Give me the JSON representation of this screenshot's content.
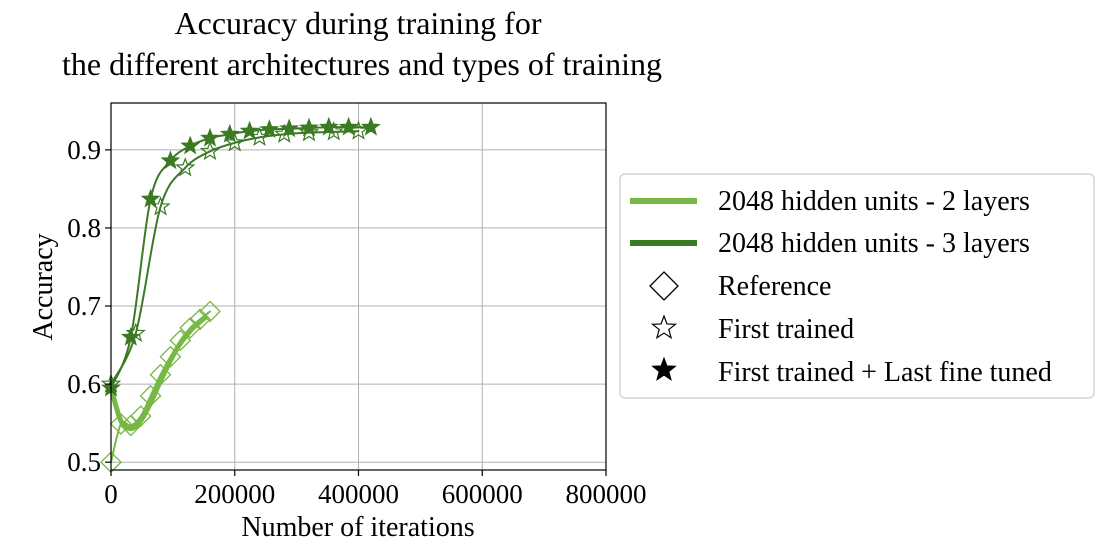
{
  "chart_data": {
    "type": "line",
    "title": [
      "Accuracy during training for",
      "the different architectures and types of training"
    ],
    "xlabel": "Number of iterations",
    "ylabel": "Accuracy",
    "xlim": [
      0,
      800000
    ],
    "ylim": [
      0.49,
      0.96
    ],
    "xticks": [
      0,
      200000,
      400000,
      600000,
      800000
    ],
    "xtick_labels": [
      "0",
      "200000",
      "400000",
      "600000",
      "800000"
    ],
    "yticks": [
      0.5,
      0.6,
      0.7,
      0.8,
      0.9
    ],
    "ytick_labels": [
      "0.5",
      "0.6",
      "0.7",
      "0.8",
      "0.9"
    ],
    "grid": true,
    "legend_placement": "right",
    "colors": {
      "arch2": "#76b843",
      "arch3": "#3b7a23",
      "marker_legend": "#000000"
    },
    "legend": {
      "lines": [
        {
          "label": "2048 hidden units - 2 layers",
          "color": "#76b843"
        },
        {
          "label": "2048 hidden units - 3 layers",
          "color": "#3b7a23"
        }
      ],
      "markers": [
        {
          "label": "Reference",
          "marker": "diamond-open"
        },
        {
          "label": "First trained",
          "marker": "star-open"
        },
        {
          "label": "First trained + Last fine tuned",
          "marker": "star-filled"
        }
      ]
    },
    "series": [
      {
        "architecture": "2048 hidden units - 2 layers",
        "training": "Reference",
        "marker": "diamond-open",
        "color": "#76b843",
        "x": [
          0,
          16000,
          32000,
          48000,
          64000,
          80000,
          96000,
          112000,
          128000,
          144000,
          160000
        ],
        "y": [
          0.5,
          0.549,
          0.547,
          0.559,
          0.585,
          0.612,
          0.635,
          0.656,
          0.672,
          0.683,
          0.693
        ]
      },
      {
        "architecture": "2048 hidden units - 2 layers",
        "training": "Reference (smoothed)",
        "marker": "none",
        "color": "#76b843",
        "x": [
          0,
          16000,
          32000,
          48000,
          64000,
          80000,
          96000,
          112000,
          128000,
          144000,
          152000
        ],
        "y": [
          0.595,
          0.553,
          0.543,
          0.553,
          0.576,
          0.604,
          0.63,
          0.652,
          0.668,
          0.68,
          0.685
        ]
      },
      {
        "architecture": "2048 hidden units - 3 layers",
        "training": "First trained",
        "marker": "star-open",
        "color": "#3b7a23",
        "x": [
          0,
          40000,
          80000,
          120000,
          160000,
          200000,
          240000,
          280000,
          320000,
          360000,
          400000
        ],
        "y": [
          0.6,
          0.665,
          0.827,
          0.877,
          0.898,
          0.909,
          0.916,
          0.92,
          0.922,
          0.923,
          0.924
        ]
      },
      {
        "architecture": "2048 hidden units - 3 layers",
        "training": "First trained + Last fine tuned",
        "marker": "star-filled",
        "color": "#3b7a23",
        "x": [
          0,
          32000,
          64000,
          96000,
          128000,
          160000,
          192000,
          224000,
          256000,
          288000,
          320000,
          352000,
          384000,
          420000
        ],
        "y": [
          0.595,
          0.66,
          0.837,
          0.886,
          0.905,
          0.915,
          0.92,
          0.924,
          0.926,
          0.927,
          0.928,
          0.929,
          0.929,
          0.929
        ]
      }
    ]
  }
}
